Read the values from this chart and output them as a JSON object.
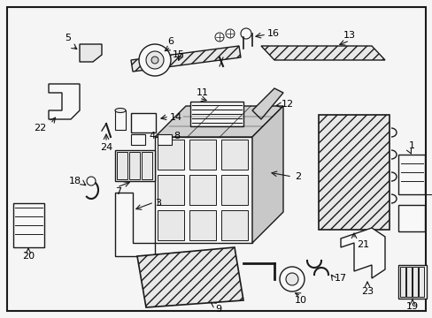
{
  "bg_color": "#f5f5f5",
  "border_color": "#000000",
  "line_color": "#1a1a1a",
  "fig_width": 4.89,
  "fig_height": 3.6,
  "dpi": 100
}
